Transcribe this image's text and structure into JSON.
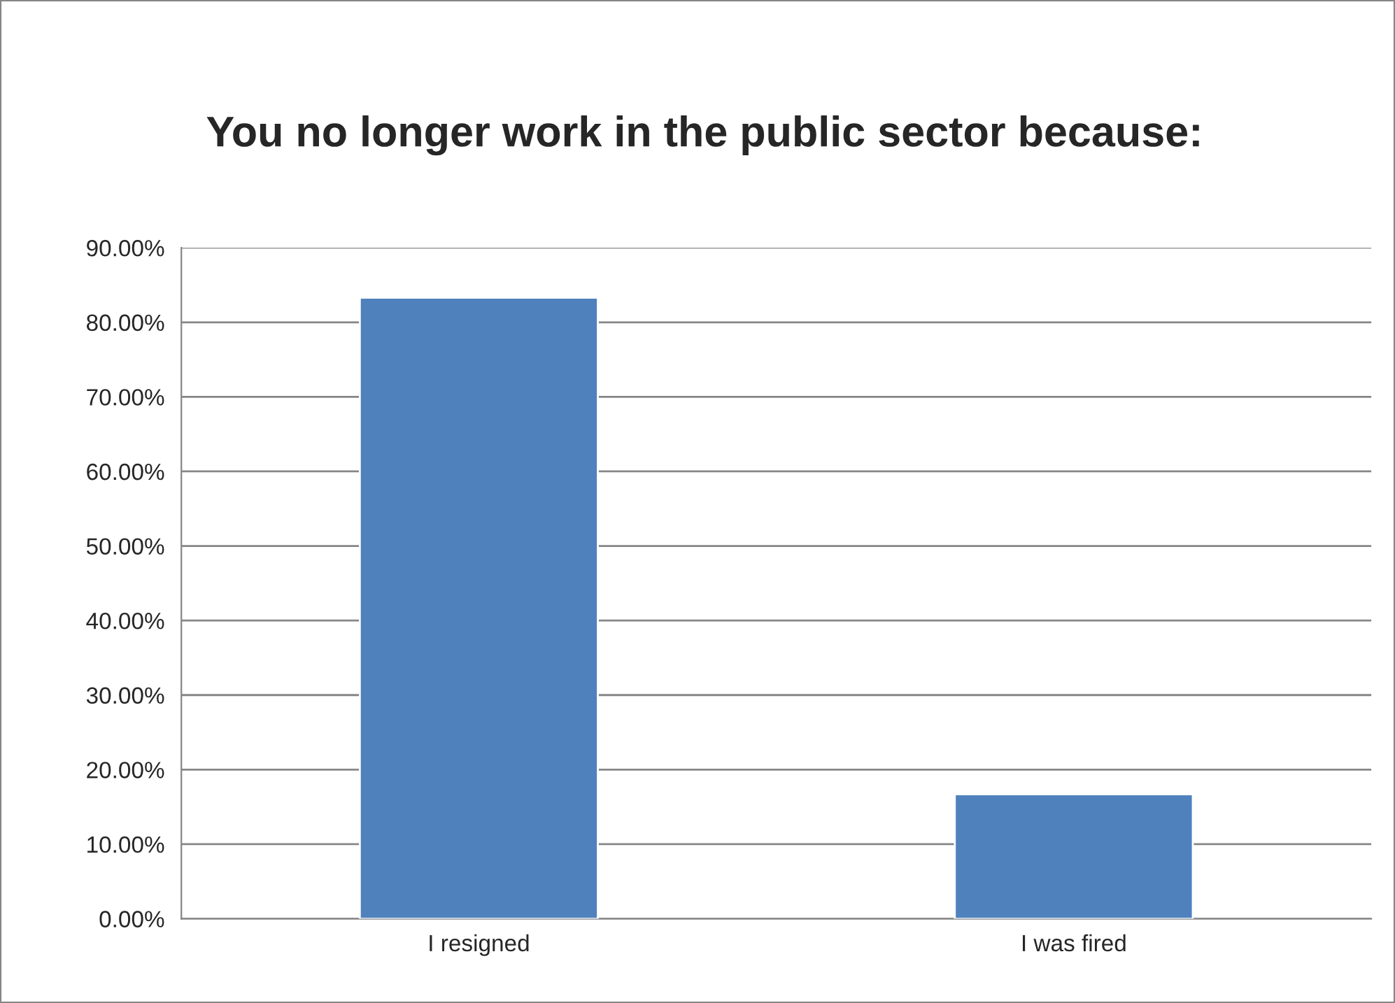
{
  "chart_data": {
    "type": "bar",
    "title": "You no longer work in the public sector because:",
    "categories": [
      "I resigned",
      "I was fired"
    ],
    "values": [
      83.3,
      16.7
    ],
    "color": "#4f81bd",
    "ylim": [
      0,
      90
    ],
    "yticks": [
      {
        "value": 0,
        "label": "0.00%"
      },
      {
        "value": 10,
        "label": "10.00%"
      },
      {
        "value": 20,
        "label": "20.00%"
      },
      {
        "value": 30,
        "label": "30.00%"
      },
      {
        "value": 40,
        "label": "40.00%"
      },
      {
        "value": 50,
        "label": "50.00%"
      },
      {
        "value": 60,
        "label": "60.00%"
      },
      {
        "value": 70,
        "label": "70.00%"
      },
      {
        "value": 80,
        "label": "80.00%"
      },
      {
        "value": 90,
        "label": "90.00%"
      }
    ],
    "grid": "y",
    "legend": false
  }
}
